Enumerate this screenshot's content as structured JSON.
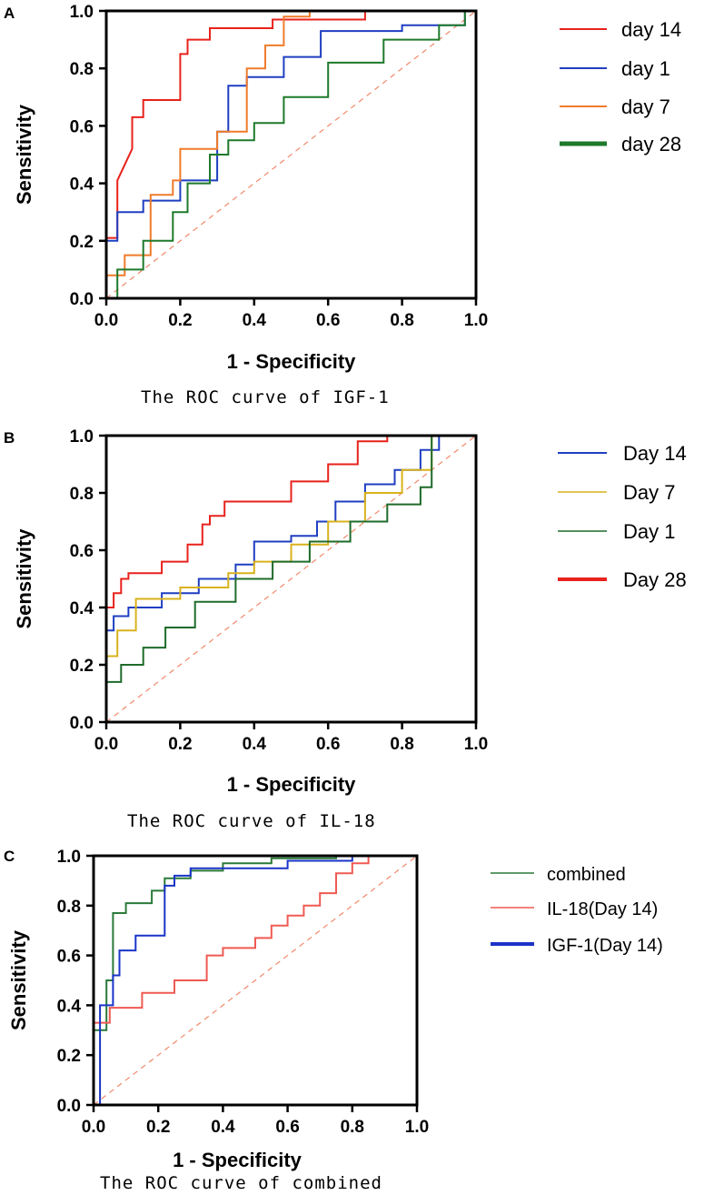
{
  "chart_data": [
    {
      "panel": "A",
      "type": "line",
      "caption": "The ROC curve of IGF-1",
      "xlabel": "1 - Specificity",
      "ylabel": "Sensitivity",
      "xlim": [
        0,
        1
      ],
      "ylim": [
        0,
        1
      ],
      "xticks": [
        "0.0",
        "0.2",
        "0.4",
        "0.6",
        "0.8",
        "1.0"
      ],
      "yticks": [
        "0.0",
        "0.2",
        "0.4",
        "0.6",
        "0.8",
        "1.0"
      ],
      "reference_line": {
        "x": [
          0,
          1
        ],
        "y": [
          0,
          1
        ],
        "color": "#f0896a"
      },
      "series": [
        {
          "name": "day 14",
          "color": "#e8221c",
          "x": [
            0.0,
            0.0,
            0.03,
            0.03,
            0.07,
            0.07,
            0.1,
            0.1,
            0.2,
            0.2,
            0.22,
            0.22,
            0.28,
            0.28,
            0.45,
            0.45,
            0.7,
            0.7,
            1.0
          ],
          "y": [
            0.0,
            0.21,
            0.21,
            0.41,
            0.52,
            0.63,
            0.63,
            0.69,
            0.69,
            0.85,
            0.85,
            0.9,
            0.9,
            0.94,
            0.94,
            0.97,
            0.97,
            1.0,
            1.0
          ]
        },
        {
          "name": "day 1",
          "color": "#1f3fc2",
          "x": [
            0.0,
            0.0,
            0.03,
            0.03,
            0.1,
            0.1,
            0.2,
            0.2,
            0.3,
            0.3,
            0.33,
            0.33,
            0.38,
            0.38,
            0.48,
            0.48,
            0.58,
            0.58,
            0.8,
            0.8,
            0.97,
            0.97,
            1.0
          ],
          "y": [
            0.0,
            0.2,
            0.2,
            0.3,
            0.3,
            0.34,
            0.34,
            0.41,
            0.41,
            0.58,
            0.58,
            0.74,
            0.74,
            0.77,
            0.77,
            0.84,
            0.84,
            0.93,
            0.93,
            0.95,
            0.95,
            1.0,
            1.0
          ]
        },
        {
          "name": "day 7",
          "color": "#f07b2a",
          "x": [
            0.0,
            0.0,
            0.05,
            0.05,
            0.12,
            0.12,
            0.18,
            0.18,
            0.2,
            0.2,
            0.3,
            0.3,
            0.38,
            0.38,
            0.43,
            0.43,
            0.48,
            0.48,
            0.55,
            0.55,
            1.0
          ],
          "y": [
            0.0,
            0.08,
            0.08,
            0.15,
            0.15,
            0.36,
            0.36,
            0.41,
            0.41,
            0.52,
            0.52,
            0.58,
            0.58,
            0.8,
            0.8,
            0.88,
            0.88,
            0.98,
            0.98,
            1.0,
            1.0
          ]
        },
        {
          "name": "day 28",
          "color": "#1e7a2a",
          "x": [
            0.0,
            0.03,
            0.03,
            0.1,
            0.1,
            0.18,
            0.18,
            0.22,
            0.22,
            0.28,
            0.28,
            0.33,
            0.33,
            0.4,
            0.4,
            0.48,
            0.48,
            0.6,
            0.6,
            0.75,
            0.75,
            0.9,
            0.9,
            0.97,
            0.97,
            1.0
          ],
          "y": [
            0.0,
            0.0,
            0.1,
            0.1,
            0.2,
            0.2,
            0.3,
            0.3,
            0.4,
            0.4,
            0.5,
            0.5,
            0.55,
            0.55,
            0.61,
            0.61,
            0.7,
            0.7,
            0.82,
            0.82,
            0.9,
            0.9,
            0.95,
            0.95,
            1.0,
            1.0
          ]
        }
      ]
    },
    {
      "panel": "B",
      "type": "line",
      "caption": "The ROC curve of IL-18",
      "xlabel": "1 - Specificity",
      "ylabel": "Sensitivity",
      "xlim": [
        0,
        1
      ],
      "ylim": [
        0,
        1
      ],
      "xticks": [
        "0.0",
        "0.2",
        "0.4",
        "0.6",
        "0.8",
        "1.0"
      ],
      "yticks": [
        "0.0",
        "0.2",
        "0.4",
        "0.6",
        "0.8",
        "1.0"
      ],
      "reference_line": {
        "x": [
          0,
          1
        ],
        "y": [
          0,
          1
        ],
        "color": "#f0896a"
      },
      "series": [
        {
          "name": "Day 14",
          "color": "#1f3fc2",
          "x": [
            0.0,
            0.0,
            0.02,
            0.02,
            0.06,
            0.06,
            0.15,
            0.15,
            0.25,
            0.25,
            0.35,
            0.35,
            0.4,
            0.4,
            0.5,
            0.5,
            0.57,
            0.57,
            0.62,
            0.62,
            0.7,
            0.7,
            0.78,
            0.78,
            0.85,
            0.85,
            0.9,
            0.9,
            1.0
          ],
          "y": [
            0.0,
            0.32,
            0.32,
            0.37,
            0.37,
            0.4,
            0.4,
            0.45,
            0.45,
            0.5,
            0.5,
            0.55,
            0.55,
            0.63,
            0.63,
            0.65,
            0.65,
            0.7,
            0.7,
            0.77,
            0.77,
            0.83,
            0.83,
            0.88,
            0.88,
            0.95,
            0.95,
            1.0,
            1.0
          ]
        },
        {
          "name": "Day 7",
          "color": "#d9b21c",
          "x": [
            0.0,
            0.0,
            0.03,
            0.03,
            0.08,
            0.08,
            0.2,
            0.2,
            0.33,
            0.33,
            0.4,
            0.4,
            0.5,
            0.5,
            0.6,
            0.6,
            0.7,
            0.7,
            0.8,
            0.8,
            0.88,
            0.88,
            1.0
          ],
          "y": [
            0.0,
            0.23,
            0.23,
            0.32,
            0.32,
            0.43,
            0.43,
            0.47,
            0.47,
            0.52,
            0.52,
            0.56,
            0.56,
            0.62,
            0.62,
            0.7,
            0.7,
            0.8,
            0.8,
            0.88,
            0.88,
            1.0,
            1.0
          ]
        },
        {
          "name": "Day 1",
          "color": "#1e6b2a",
          "x": [
            0.0,
            0.0,
            0.04,
            0.04,
            0.1,
            0.1,
            0.16,
            0.16,
            0.24,
            0.24,
            0.35,
            0.35,
            0.45,
            0.45,
            0.55,
            0.55,
            0.66,
            0.66,
            0.76,
            0.76,
            0.85,
            0.85,
            0.88,
            0.88,
            1.0
          ],
          "y": [
            0.0,
            0.14,
            0.14,
            0.2,
            0.2,
            0.26,
            0.26,
            0.33,
            0.33,
            0.42,
            0.42,
            0.5,
            0.5,
            0.56,
            0.56,
            0.63,
            0.63,
            0.7,
            0.7,
            0.76,
            0.76,
            0.82,
            0.82,
            1.0,
            1.0
          ]
        },
        {
          "name": "Day 28",
          "color": "#e8221c",
          "x": [
            0.0,
            0.0,
            0.02,
            0.02,
            0.04,
            0.04,
            0.06,
            0.06,
            0.15,
            0.15,
            0.22,
            0.22,
            0.26,
            0.26,
            0.28,
            0.28,
            0.32,
            0.32,
            0.5,
            0.5,
            0.6,
            0.6,
            0.68,
            0.68,
            0.76,
            0.76,
            1.0
          ],
          "y": [
            0.0,
            0.4,
            0.4,
            0.45,
            0.45,
            0.5,
            0.5,
            0.52,
            0.52,
            0.56,
            0.56,
            0.62,
            0.62,
            0.69,
            0.69,
            0.72,
            0.72,
            0.77,
            0.77,
            0.84,
            0.84,
            0.9,
            0.9,
            0.98,
            0.98,
            1.0,
            1.0
          ]
        }
      ]
    },
    {
      "panel": "C",
      "type": "line",
      "caption": "The ROC curve of combined",
      "xlabel": "1 - Specificity",
      "ylabel": "Sensitivity",
      "xlim": [
        0,
        1
      ],
      "ylim": [
        0,
        1
      ],
      "xticks": [
        "0.0",
        "0.2",
        "0.4",
        "0.6",
        "0.8",
        "1.0"
      ],
      "yticks": [
        "0.0",
        "0.2",
        "0.4",
        "0.6",
        "0.8",
        "1.0"
      ],
      "reference_line": {
        "x": [
          0,
          1
        ],
        "y": [
          0,
          1
        ],
        "color": "#f0896a"
      },
      "series": [
        {
          "name": "combined",
          "color": "#2a7a3a",
          "x": [
            0.0,
            0.0,
            0.04,
            0.04,
            0.06,
            0.06,
            0.1,
            0.1,
            0.18,
            0.18,
            0.22,
            0.22,
            0.3,
            0.3,
            0.4,
            0.4,
            0.55,
            0.55,
            0.75,
            0.75,
            1.0
          ],
          "y": [
            0.0,
            0.3,
            0.3,
            0.5,
            0.5,
            0.77,
            0.77,
            0.81,
            0.81,
            0.86,
            0.86,
            0.91,
            0.91,
            0.94,
            0.94,
            0.97,
            0.97,
            0.99,
            0.99,
            1.0,
            1.0
          ]
        },
        {
          "name": "IL-18(Day 14)",
          "color": "#ef5a52",
          "x": [
            0.0,
            0.0,
            0.05,
            0.05,
            0.15,
            0.15,
            0.25,
            0.25,
            0.35,
            0.35,
            0.4,
            0.4,
            0.5,
            0.5,
            0.55,
            0.55,
            0.6,
            0.6,
            0.65,
            0.65,
            0.7,
            0.7,
            0.75,
            0.75,
            0.8,
            0.8,
            0.85,
            0.85,
            1.0
          ],
          "y": [
            0.0,
            0.33,
            0.33,
            0.39,
            0.39,
            0.45,
            0.45,
            0.5,
            0.5,
            0.6,
            0.6,
            0.63,
            0.63,
            0.67,
            0.67,
            0.72,
            0.72,
            0.76,
            0.76,
            0.8,
            0.8,
            0.85,
            0.85,
            0.93,
            0.93,
            0.97,
            0.97,
            1.0,
            1.0
          ]
        },
        {
          "name": "IGF-1(Day 14)",
          "color": "#1a34c8",
          "x": [
            0.0,
            0.02,
            0.02,
            0.06,
            0.06,
            0.08,
            0.08,
            0.13,
            0.13,
            0.22,
            0.22,
            0.25,
            0.25,
            0.3,
            0.3,
            0.6,
            0.6,
            0.8,
            0.8,
            1.0
          ],
          "y": [
            0.0,
            0.0,
            0.4,
            0.4,
            0.52,
            0.52,
            0.62,
            0.62,
            0.68,
            0.68,
            0.88,
            0.88,
            0.92,
            0.92,
            0.95,
            0.95,
            0.98,
            0.98,
            1.0,
            1.0
          ]
        }
      ]
    }
  ]
}
